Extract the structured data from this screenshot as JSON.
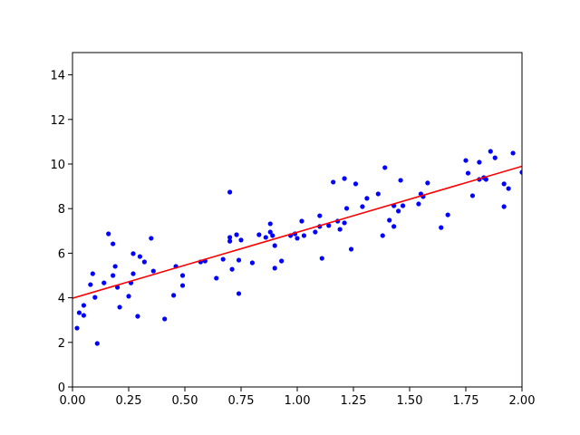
{
  "chart_data": {
    "type": "scatter",
    "xlim": [
      0,
      2
    ],
    "ylim": [
      0,
      15
    ],
    "xticks": [
      {
        "value": 0,
        "label": "0.00"
      },
      {
        "value": 0.25,
        "label": "0.25"
      },
      {
        "value": 0.5,
        "label": "0.50"
      },
      {
        "value": 0.75,
        "label": "0.75"
      },
      {
        "value": 1,
        "label": "1.00"
      },
      {
        "value": 1.25,
        "label": "1.25"
      },
      {
        "value": 1.5,
        "label": "1.50"
      },
      {
        "value": 1.75,
        "label": "1.75"
      },
      {
        "value": 2,
        "label": "2.00"
      }
    ],
    "yticks": [
      0,
      2,
      4,
      6,
      8,
      10,
      12,
      14
    ],
    "points": {
      "color": "#0000ff",
      "x": [
        0.02,
        0.03,
        0.05,
        0.05,
        0.08,
        0.09,
        0.1,
        0.11,
        0.14,
        0.16,
        0.18,
        0.18,
        0.19,
        0.2,
        0.21,
        0.25,
        0.26,
        0.27,
        0.27,
        0.29,
        0.3,
        0.32,
        0.35,
        0.36,
        0.41,
        0.45,
        0.46,
        0.49,
        0.49,
        0.57,
        0.59,
        0.64,
        0.67,
        0.7,
        0.7,
        0.7,
        0.71,
        0.73,
        0.74,
        0.74,
        0.75,
        0.8,
        0.83,
        0.86,
        0.88,
        0.88,
        0.89,
        0.9,
        0.9,
        0.93,
        0.97,
        0.99,
        1.0,
        1.02,
        1.03,
        1.08,
        1.1,
        1.11,
        1.1,
        1.14,
        1.16,
        1.18,
        1.19,
        1.21,
        1.21,
        1.22,
        1.24,
        1.26,
        1.29,
        1.31,
        1.36,
        1.38,
        1.39,
        1.41,
        1.43,
        1.43,
        1.45,
        1.46,
        1.47,
        1.54,
        1.55,
        1.56,
        1.58,
        1.64,
        1.67,
        1.75,
        1.76,
        1.78,
        1.81,
        1.81,
        1.83,
        1.84,
        1.86,
        1.88,
        1.92,
        1.92,
        1.94,
        1.96,
        2.0
      ],
      "y": [
        2.64,
        3.33,
        3.66,
        3.21,
        4.59,
        5.08,
        4.02,
        1.95,
        4.67,
        6.87,
        5.0,
        6.42,
        5.41,
        4.47,
        3.58,
        4.07,
        4.67,
        5.08,
        5.98,
        3.17,
        5.85,
        5.61,
        6.67,
        5.2,
        3.05,
        4.11,
        5.41,
        5.0,
        4.55,
        5.61,
        5.65,
        4.88,
        5.73,
        8.74,
        6.54,
        6.71,
        5.28,
        6.83,
        4.19,
        5.69,
        6.59,
        5.57,
        6.83,
        6.71,
        6.95,
        7.32,
        6.79,
        6.34,
        5.33,
        5.65,
        6.79,
        6.87,
        6.67,
        7.44,
        6.79,
        6.95,
        7.68,
        5.77,
        7.2,
        7.24,
        9.19,
        7.44,
        7.07,
        7.36,
        9.35,
        8.01,
        6.18,
        9.11,
        8.09,
        8.46,
        8.66,
        6.79,
        9.84,
        7.48,
        7.2,
        8.13,
        7.89,
        9.27,
        8.13,
        8.21,
        8.66,
        8.54,
        9.15,
        7.15,
        7.72,
        10.16,
        9.59,
        8.58,
        10.08,
        9.31,
        9.39,
        9.31,
        10.57,
        10.28,
        9.11,
        8.09,
        8.9,
        10.49,
        9.63
      ]
    },
    "line": {
      "color": "#ff0000",
      "x": [
        0,
        2
      ],
      "y": [
        3.98,
        9.9
      ]
    }
  }
}
